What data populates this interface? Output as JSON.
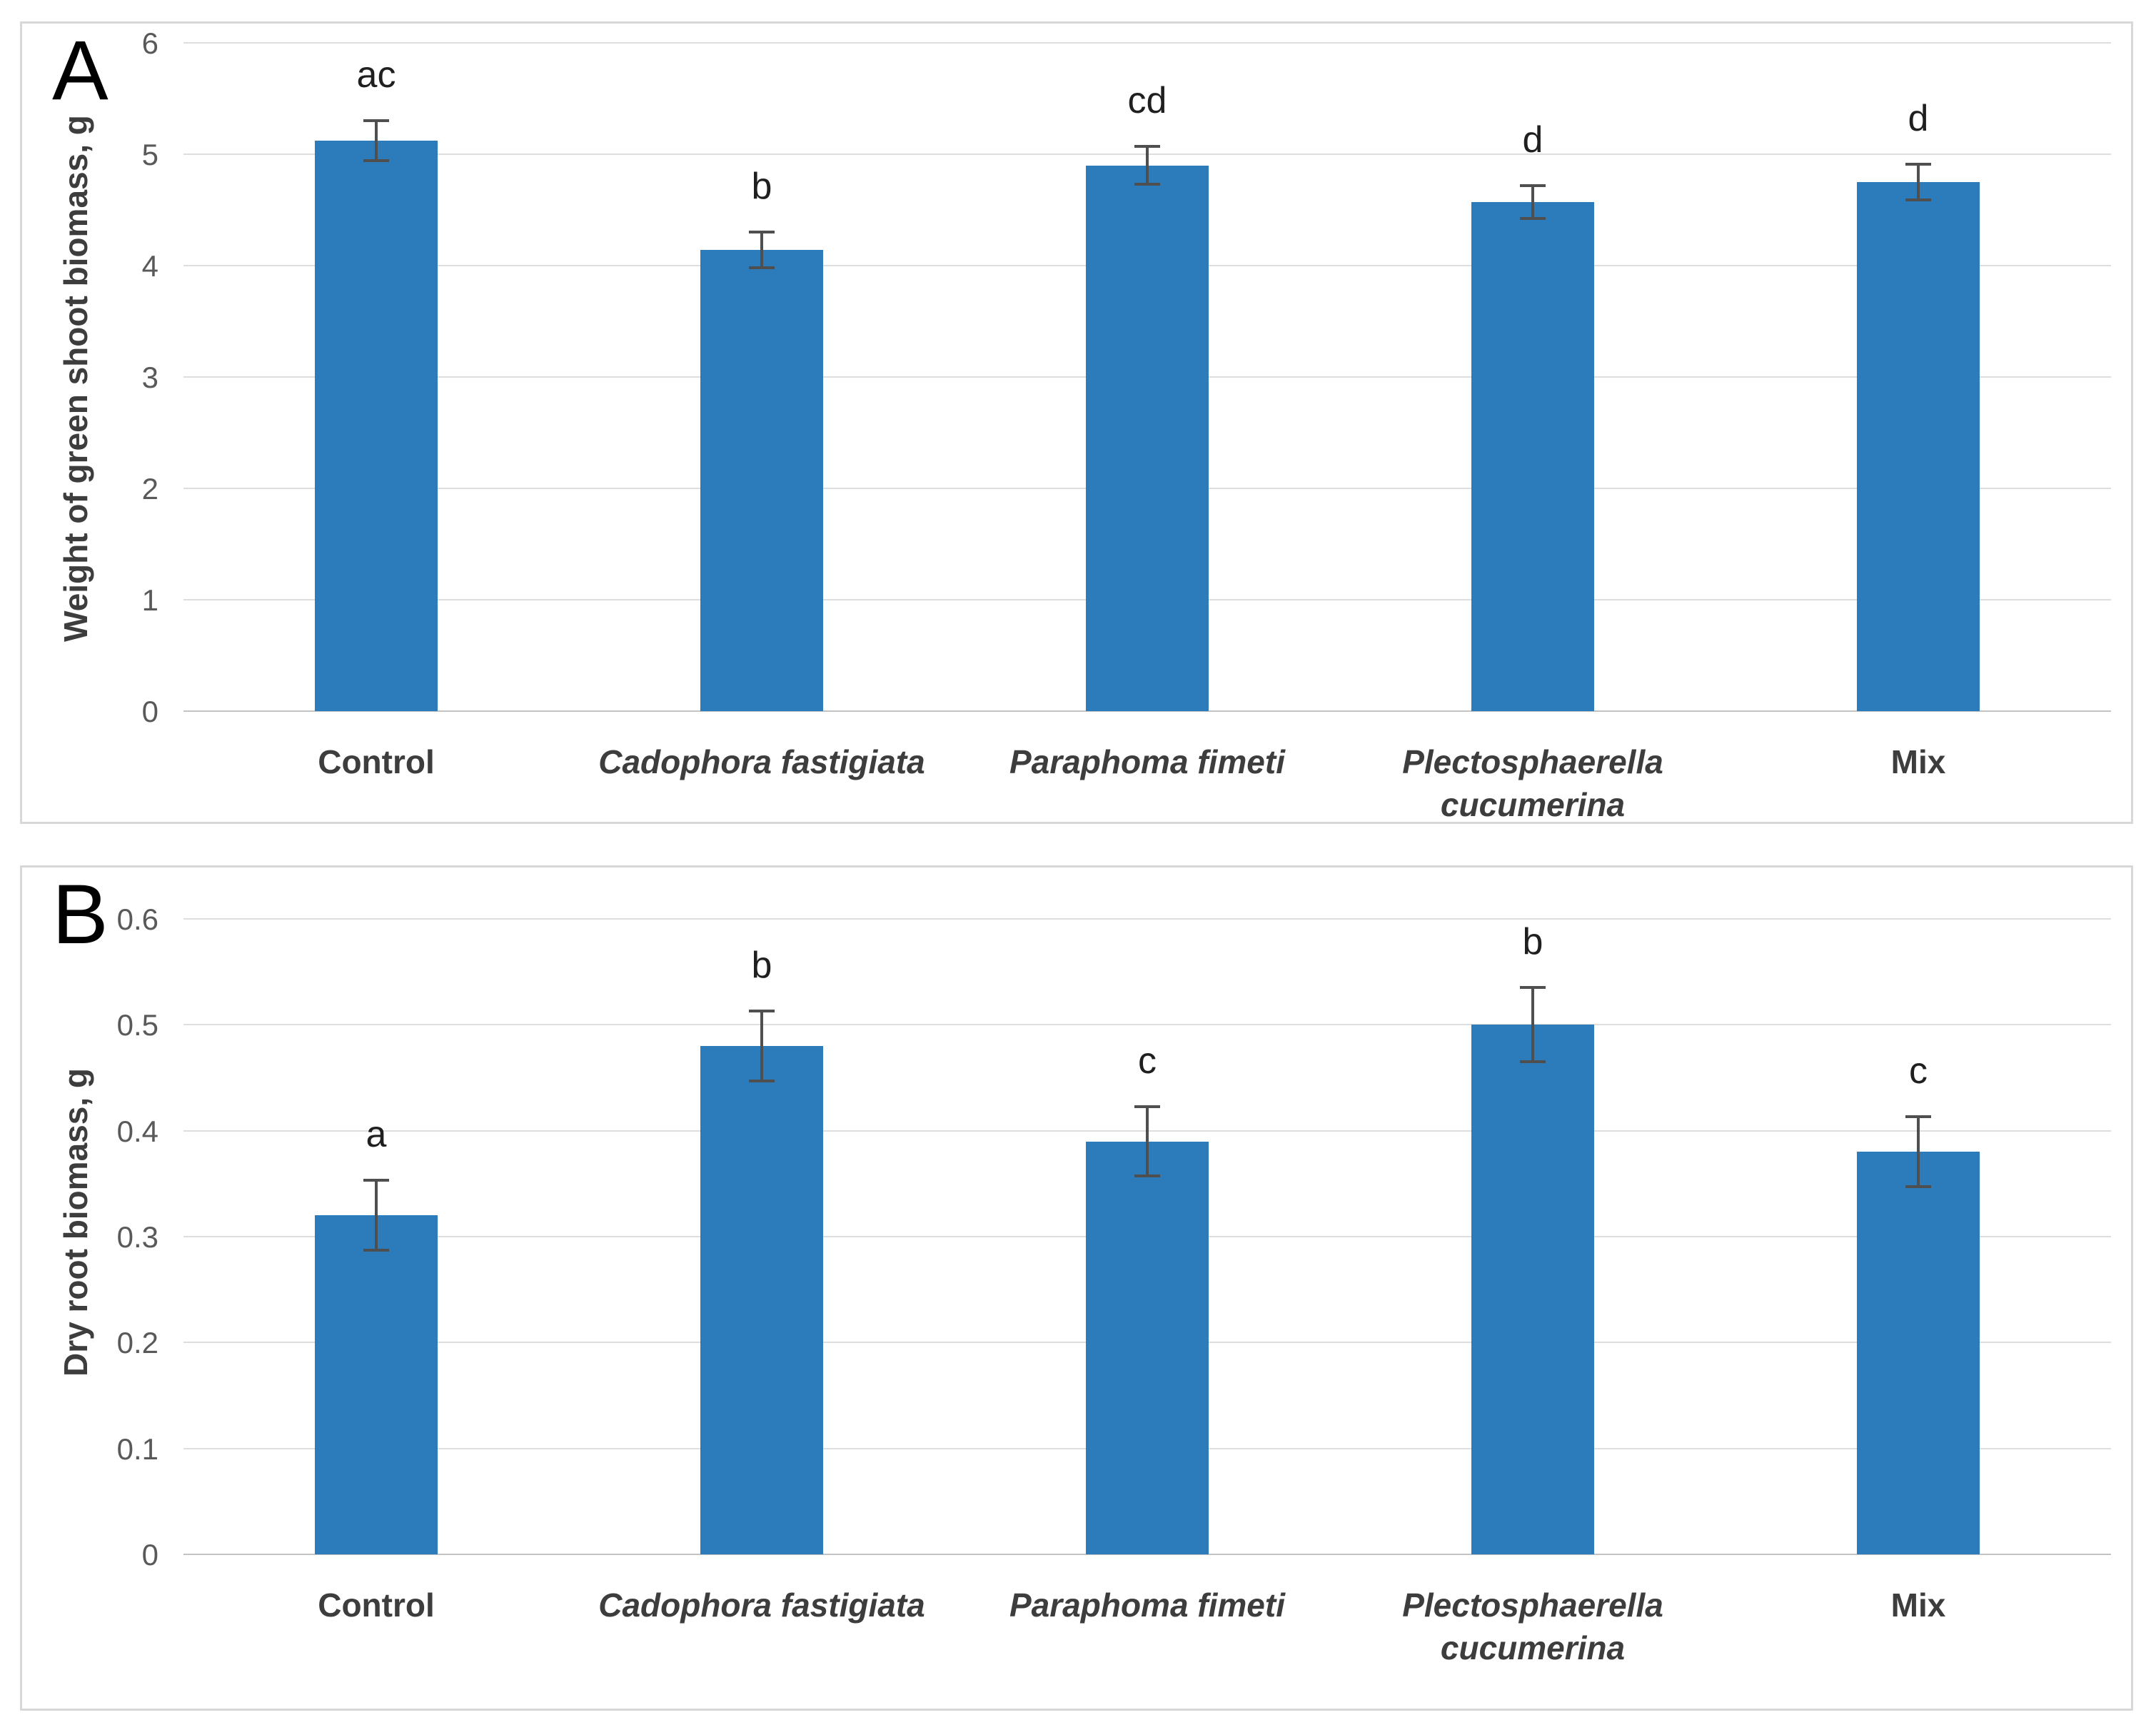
{
  "colors": {
    "bar_fill": "#2c7cbb",
    "gridline": "#dedede",
    "zero_axis_line": "#c3c3c3",
    "error_bar": "#4f4f4f",
    "tick_label": "#595959",
    "axis_title": "#3d3d3d",
    "significance_letter": "#1f1f1f",
    "panel_border": "#d8d8d8",
    "background": "#ffffff"
  },
  "chart_data": [
    {
      "type": "bar",
      "panel": "A",
      "title": "",
      "xlabel": "",
      "ylabel": "Weight of green shoot biomass, g",
      "categories": [
        "Control",
        "Cadophora fastigiata",
        "Paraphoma fimeti",
        "Plectosphaerella cucumerina",
        "Mix"
      ],
      "categories_italic": [
        false,
        true,
        true,
        true,
        false
      ],
      "values": [
        5.12,
        4.14,
        4.9,
        4.57,
        4.75
      ],
      "errors": [
        0.18,
        0.16,
        0.17,
        0.15,
        0.16
      ],
      "sig_letters": [
        "ac",
        "b",
        "cd",
        "d",
        "d"
      ],
      "ylim": [
        0,
        6
      ],
      "ytick_labels": [
        "6",
        "5",
        "4",
        "3",
        "2",
        "1",
        "0"
      ],
      "grid": true,
      "legend": "none"
    },
    {
      "type": "bar",
      "panel": "B",
      "title": "",
      "xlabel": "",
      "ylabel": "Dry root biomass, g",
      "categories": [
        "Control",
        "Cadophora fastigiata",
        "Paraphoma fimeti",
        "Plectosphaerella cucumerina",
        "Mix"
      ],
      "categories_italic": [
        false,
        true,
        true,
        true,
        false
      ],
      "values": [
        0.32,
        0.48,
        0.39,
        0.5,
        0.38
      ],
      "errors": [
        0.033,
        0.033,
        0.033,
        0.035,
        0.033
      ],
      "sig_letters": [
        "a",
        "b",
        "c",
        "b",
        "c"
      ],
      "ylim": [
        0,
        0.6
      ],
      "ytick_labels": [
        "0.6",
        "0.5",
        "0.4",
        "0.3",
        "0.2",
        "0.1",
        "0"
      ],
      "grid": true,
      "legend": "none"
    }
  ]
}
